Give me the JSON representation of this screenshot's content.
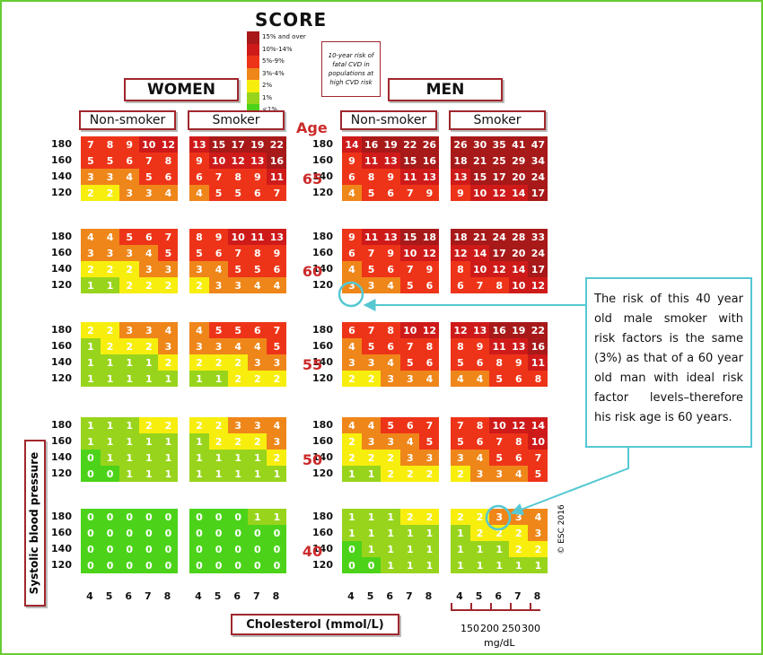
{
  "title": "SCORE",
  "copyright": "© ESC 2016",
  "legend": {
    "levels": [
      "15% and over",
      "10%-14%",
      "5%-9%",
      "3%-4%",
      "2%",
      "1%",
      "<1%"
    ],
    "colors": [
      "#a81919",
      "#cf1a1a",
      "#ee3418",
      "#ef861a",
      "#f7ee0e",
      "#98d41c",
      "#4cd319"
    ],
    "caption": "10-year risk of fatal CVD in populations at high CVD risk"
  },
  "headers": {
    "women": "WOMEN",
    "men": "MEN",
    "nonsmoker": "Non-smoker",
    "smoker": "Smoker",
    "age": "Age"
  },
  "axis": {
    "y_title": "Systolic blood pressure",
    "x_title": "Cholesterol (mmol/L)",
    "mgdl_ticks": [
      "150",
      "200",
      "250",
      "300"
    ],
    "mgdl_unit": "mg/dL"
  },
  "callout": {
    "text": "The risk of this 40 year old male smoker with risk factors is the same (3%) as that of a 60 year old man with ideal risk factor levels–therefore his risk age is 60 years."
  },
  "chart_data": {
    "type": "heatmap",
    "title": "SCORE",
    "xlabel": "Cholesterol (mmol/L)",
    "ylabel": "Systolic blood pressure",
    "cholesterol": [
      "4",
      "5",
      "6",
      "7",
      "8"
    ],
    "sbp": [
      "180",
      "160",
      "140",
      "120"
    ],
    "ages": [
      "65",
      "60",
      "55",
      "50",
      "40"
    ],
    "groups": [
      "Women non-smoker",
      "Women smoker",
      "Men non-smoker",
      "Men smoker"
    ],
    "values": [
      [
        [
          [
            7,
            8,
            9,
            10,
            12
          ],
          [
            5,
            5,
            6,
            7,
            8
          ],
          [
            3,
            3,
            4,
            5,
            6
          ],
          [
            2,
            2,
            3,
            3,
            4
          ]
        ],
        [
          [
            13,
            15,
            17,
            19,
            22
          ],
          [
            9,
            10,
            12,
            13,
            16
          ],
          [
            6,
            7,
            8,
            9,
            11
          ],
          [
            4,
            5,
            5,
            6,
            7
          ]
        ],
        [
          [
            14,
            16,
            19,
            22,
            26
          ],
          [
            9,
            11,
            13,
            15,
            16
          ],
          [
            6,
            8,
            9,
            11,
            13
          ],
          [
            4,
            5,
            6,
            7,
            9
          ]
        ],
        [
          [
            26,
            30,
            35,
            41,
            47
          ],
          [
            18,
            21,
            25,
            29,
            34
          ],
          [
            13,
            15,
            17,
            20,
            24
          ],
          [
            9,
            10,
            12,
            14,
            17
          ]
        ]
      ],
      [
        [
          [
            4,
            4,
            5,
            6,
            7
          ],
          [
            3,
            3,
            3,
            4,
            5
          ],
          [
            2,
            2,
            2,
            3,
            3
          ],
          [
            1,
            1,
            2,
            2,
            2
          ]
        ],
        [
          [
            8,
            9,
            10,
            11,
            13
          ],
          [
            5,
            6,
            7,
            8,
            9
          ],
          [
            3,
            4,
            5,
            5,
            6
          ],
          [
            2,
            3,
            3,
            4,
            4
          ]
        ],
        [
          [
            9,
            11,
            13,
            15,
            18
          ],
          [
            6,
            7,
            9,
            10,
            12
          ],
          [
            4,
            5,
            6,
            7,
            9
          ],
          [
            3,
            3,
            4,
            5,
            6
          ]
        ],
        [
          [
            18,
            21,
            24,
            28,
            33
          ],
          [
            12,
            14,
            17,
            20,
            24
          ],
          [
            8,
            10,
            12,
            14,
            17
          ],
          [
            6,
            7,
            8,
            10,
            12
          ]
        ]
      ],
      [
        [
          [
            2,
            2,
            3,
            3,
            4
          ],
          [
            1,
            2,
            2,
            2,
            3
          ],
          [
            1,
            1,
            1,
            1,
            2
          ],
          [
            1,
            1,
            1,
            1,
            1
          ]
        ],
        [
          [
            4,
            5,
            5,
            6,
            7
          ],
          [
            3,
            3,
            4,
            4,
            5
          ],
          [
            2,
            2,
            2,
            3,
            3
          ],
          [
            1,
            1,
            2,
            2,
            2
          ]
        ],
        [
          [
            6,
            7,
            8,
            10,
            12
          ],
          [
            4,
            5,
            6,
            7,
            8
          ],
          [
            3,
            3,
            4,
            5,
            6
          ],
          [
            2,
            2,
            3,
            3,
            4
          ]
        ],
        [
          [
            12,
            13,
            16,
            19,
            22
          ],
          [
            8,
            9,
            11,
            13,
            16
          ],
          [
            5,
            6,
            8,
            9,
            11
          ],
          [
            4,
            4,
            5,
            6,
            8
          ]
        ]
      ],
      [
        [
          [
            1,
            1,
            1,
            2,
            2
          ],
          [
            1,
            1,
            1,
            1,
            1
          ],
          [
            0,
            1,
            1,
            1,
            1
          ],
          [
            0,
            0,
            1,
            1,
            1
          ]
        ],
        [
          [
            2,
            2,
            3,
            3,
            4
          ],
          [
            1,
            2,
            2,
            2,
            3
          ],
          [
            1,
            1,
            1,
            1,
            2
          ],
          [
            1,
            1,
            1,
            1,
            1
          ]
        ],
        [
          [
            4,
            4,
            5,
            6,
            7
          ],
          [
            2,
            3,
            3,
            4,
            5
          ],
          [
            2,
            2,
            2,
            3,
            3
          ],
          [
            1,
            1,
            2,
            2,
            2
          ]
        ],
        [
          [
            7,
            8,
            10,
            12,
            14
          ],
          [
            5,
            6,
            7,
            8,
            10
          ],
          [
            3,
            4,
            5,
            6,
            7
          ],
          [
            2,
            3,
            3,
            4,
            5
          ]
        ]
      ],
      [
        [
          [
            0,
            0,
            0,
            0,
            0
          ],
          [
            0,
            0,
            0,
            0,
            0
          ],
          [
            0,
            0,
            0,
            0,
            0
          ],
          [
            0,
            0,
            0,
            0,
            0
          ]
        ],
        [
          [
            0,
            0,
            0,
            1,
            1
          ],
          [
            0,
            0,
            0,
            0,
            0
          ],
          [
            0,
            0,
            0,
            0,
            0
          ],
          [
            0,
            0,
            0,
            0,
            0
          ]
        ],
        [
          [
            1,
            1,
            1,
            2,
            2
          ],
          [
            1,
            1,
            1,
            1,
            1
          ],
          [
            0,
            1,
            1,
            1,
            1
          ],
          [
            0,
            0,
            1,
            1,
            1
          ]
        ],
        [
          [
            2,
            2,
            3,
            3,
            4
          ],
          [
            1,
            2,
            2,
            2,
            3
          ],
          [
            1,
            1,
            1,
            2,
            2
          ],
          [
            1,
            1,
            1,
            1,
            1
          ]
        ]
      ]
    ]
  }
}
